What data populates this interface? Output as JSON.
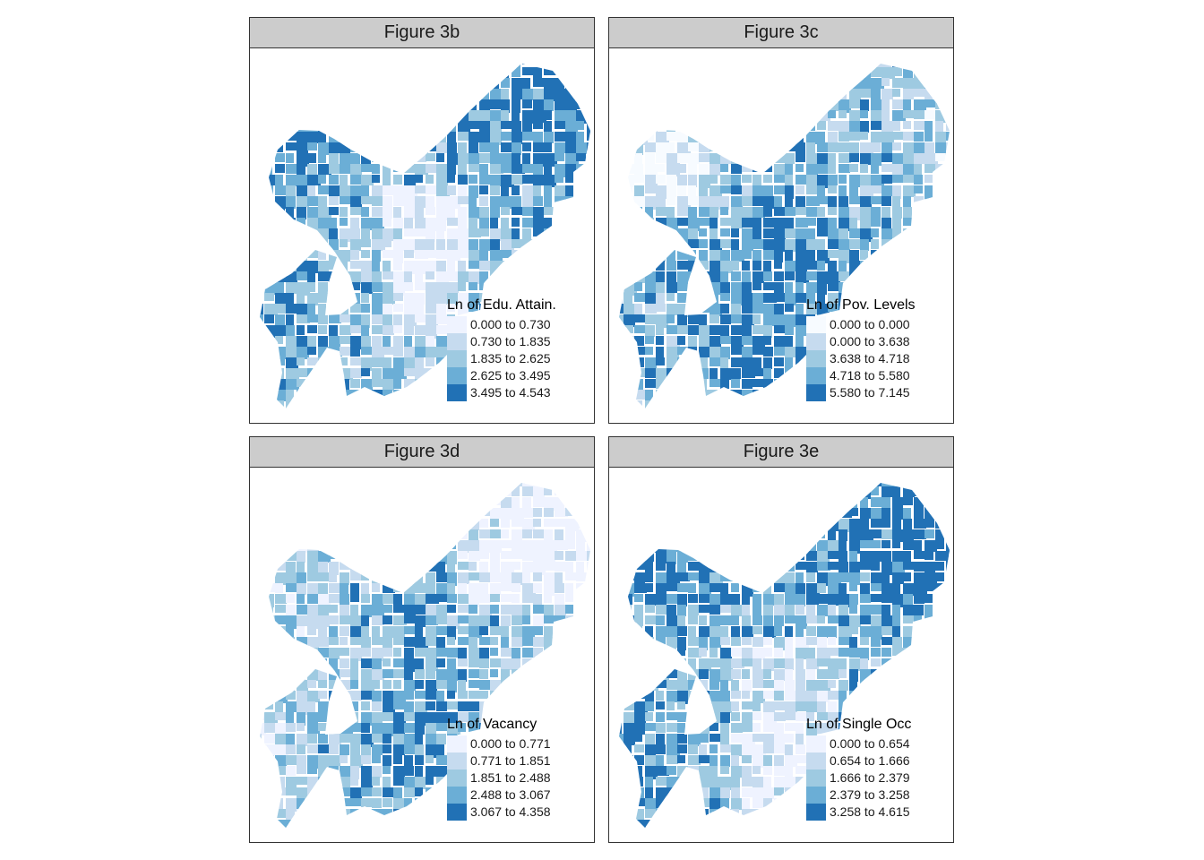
{
  "palette": [
    "#eff3ff",
    "#c6dbef",
    "#9ecae1",
    "#6baed6",
    "#2171b5"
  ],
  "pov_palette": [
    "#f7fbff",
    "#c6dbef",
    "#9ecae1",
    "#6baed6",
    "#2171b5"
  ],
  "panels": [
    {
      "title": "Figure 3b",
      "legend_title": "Ln of Edu. Attain.",
      "classes": [
        "0.000 to 0.730",
        "0.730 to 1.835",
        "1.835 to 2.625",
        "2.625 to 3.495",
        "3.495 to 4.543"
      ]
    },
    {
      "title": "Figure 3c",
      "legend_title": "Ln of Pov. Levels",
      "classes": [
        "0.000 to 0.000",
        "0.000 to 3.638",
        "3.638 to 4.718",
        "4.718 to 5.580",
        "5.580 to 7.145"
      ]
    },
    {
      "title": "Figure 3d",
      "legend_title": "Ln of Vacancy",
      "classes": [
        "0.000 to 0.771",
        "0.771 to 1.851",
        "1.851 to 2.488",
        "2.488 to 3.067",
        "3.067 to 4.358"
      ]
    },
    {
      "title": "Figure 3e",
      "legend_title": "Ln of Single Occ",
      "classes": [
        "0.000 to 0.654",
        "0.654 to 1.666",
        "1.666 to 2.379",
        "2.379 to 3.258",
        "3.258 to 4.615"
      ]
    }
  ]
}
